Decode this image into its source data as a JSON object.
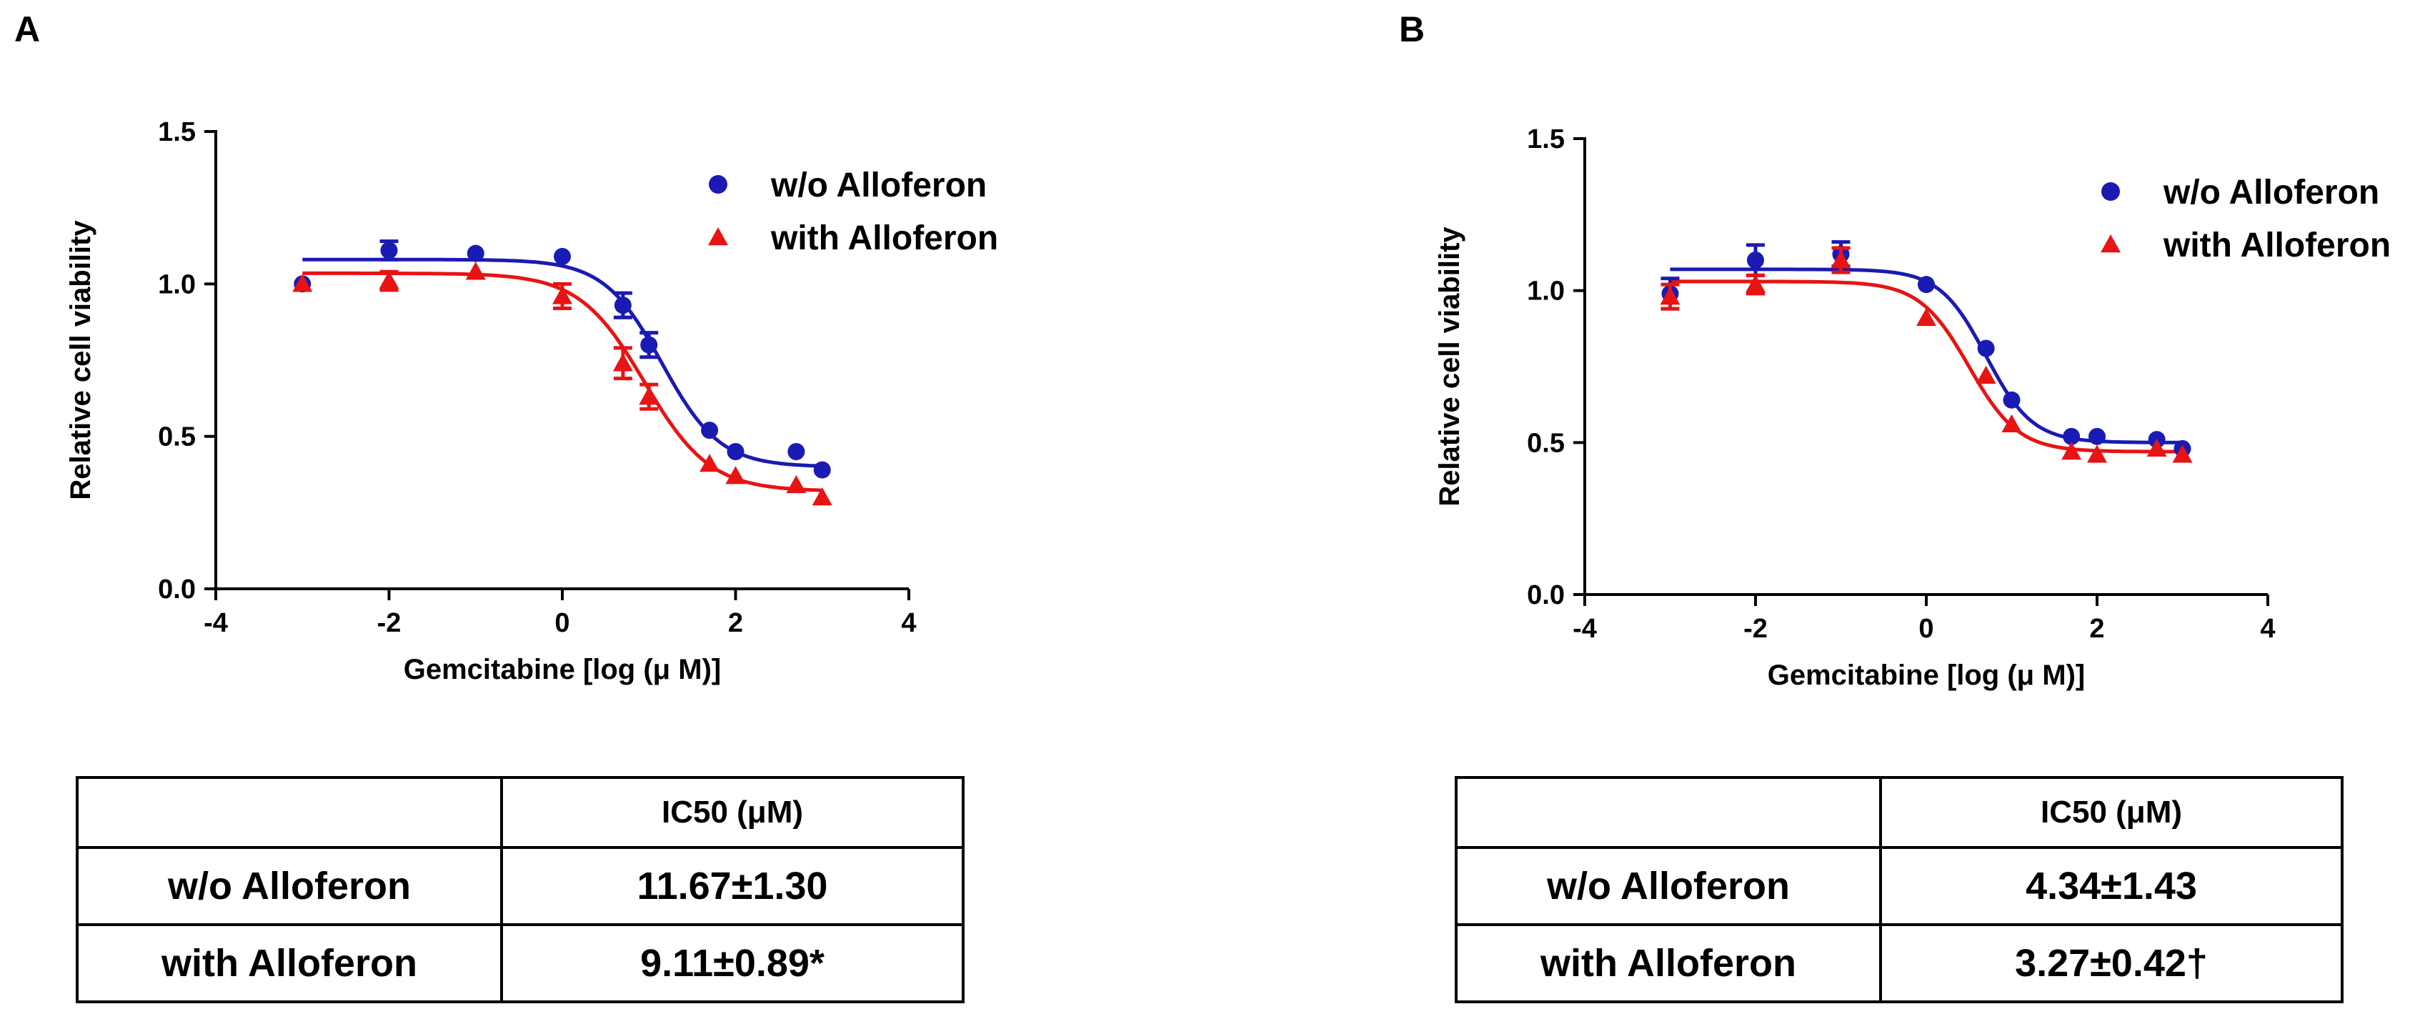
{
  "panels": [
    {
      "letter": "A",
      "table": {
        "header": [
          "",
          "IC50 (μM)"
        ],
        "rows": [
          {
            "label": "w/o Alloferon",
            "value": "11.67±1.30"
          },
          {
            "label": "with Alloferon",
            "value": "9.11±0.89*"
          }
        ]
      }
    },
    {
      "letter": "B",
      "table": {
        "header": [
          "",
          "IC50 (μM)"
        ],
        "rows": [
          {
            "label": "w/o Alloferon",
            "value": "4.34±1.43"
          },
          {
            "label": "with Alloferon",
            "value": "3.27±0.42†"
          }
        ]
      }
    }
  ],
  "chart_data": [
    {
      "type": "scatter",
      "panel": "A",
      "title": "",
      "xlabel": "Gemcitabine [log (μ M)]",
      "ylabel": "Relative cell viability",
      "xlim": [
        -4,
        4
      ],
      "ylim": [
        0,
        1.5
      ],
      "xticks": [
        -4,
        -2,
        0,
        2,
        4
      ],
      "yticks": [
        0.0,
        0.5,
        1.0,
        1.5
      ],
      "xtick_labels": [
        "-4",
        "-2",
        "0",
        "2",
        "4"
      ],
      "ytick_labels": [
        "0.0",
        "0.5",
        "1.0",
        "1.5"
      ],
      "legend_position": "top-right",
      "series": [
        {
          "name": "w/o Alloferon",
          "marker": "circle",
          "color": "#1a1ab4",
          "x": [
            -3,
            -2,
            -1,
            0,
            0.7,
            1,
            1.7,
            2,
            2.7,
            3
          ],
          "y": [
            1.0,
            1.11,
            1.1,
            1.09,
            0.93,
            0.8,
            0.52,
            0.45,
            0.45,
            0.39
          ],
          "err": [
            0,
            0.03,
            0,
            0,
            0.04,
            0.04,
            0,
            0,
            0,
            0
          ],
          "fit": {
            "top": 1.08,
            "bottom": 0.4,
            "logIC50": 1.15,
            "hill": 1.3
          }
        },
        {
          "name": "with Alloferon",
          "marker": "triangle",
          "color": "#e81313",
          "x": [
            -3,
            -2,
            -1,
            0,
            0.7,
            1,
            1.7,
            2,
            2.7,
            3
          ],
          "y": [
            1.0,
            1.01,
            1.04,
            0.96,
            0.74,
            0.63,
            0.41,
            0.37,
            0.34,
            0.3
          ],
          "err": [
            0,
            0.03,
            0,
            0.04,
            0.05,
            0.04,
            0,
            0,
            0,
            0
          ],
          "fit": {
            "top": 1.035,
            "bottom": 0.32,
            "logIC50": 0.95,
            "hill": 1.15
          }
        }
      ]
    },
    {
      "type": "scatter",
      "panel": "B",
      "title": "",
      "xlabel": "Gemcitabine [log (μ M)]",
      "ylabel": "Relative cell viability",
      "xlim": [
        -4,
        4
      ],
      "ylim": [
        0,
        1.5
      ],
      "xticks": [
        -4,
        -2,
        0,
        2,
        4
      ],
      "yticks": [
        0.0,
        0.5,
        1.0,
        1.5
      ],
      "xtick_labels": [
        "-4",
        "-2",
        "0",
        "2",
        "4"
      ],
      "ytick_labels": [
        "0.0",
        "0.5",
        "1.0",
        "1.5"
      ],
      "legend_position": "top-right",
      "series": [
        {
          "name": "w/o Alloferon",
          "marker": "circle",
          "color": "#1a1ab4",
          "x": [
            -3,
            -2,
            -1,
            0,
            0.7,
            1,
            1.7,
            2,
            2.7,
            3
          ],
          "y": [
            0.99,
            1.1,
            1.12,
            1.02,
            0.81,
            0.64,
            0.52,
            0.52,
            0.51,
            0.48
          ],
          "err": [
            0.05,
            0.05,
            0.04,
            0,
            0,
            0,
            0,
            0,
            0,
            0
          ],
          "fit": {
            "top": 1.07,
            "bottom": 0.5,
            "logIC50": 0.7,
            "hill": 1.6
          }
        },
        {
          "name": "with Alloferon",
          "marker": "triangle",
          "color": "#e81313",
          "x": [
            -3,
            -2,
            -1,
            0,
            0.7,
            1,
            1.7,
            2,
            2.7,
            3
          ],
          "y": [
            0.98,
            1.02,
            1.1,
            0.91,
            0.72,
            0.56,
            0.47,
            0.46,
            0.48,
            0.46
          ],
          "err": [
            0.04,
            0.03,
            0.04,
            0,
            0,
            0,
            0,
            0,
            0,
            0
          ],
          "fit": {
            "top": 1.03,
            "bottom": 0.47,
            "logIC50": 0.5,
            "hill": 1.5
          }
        }
      ]
    }
  ]
}
